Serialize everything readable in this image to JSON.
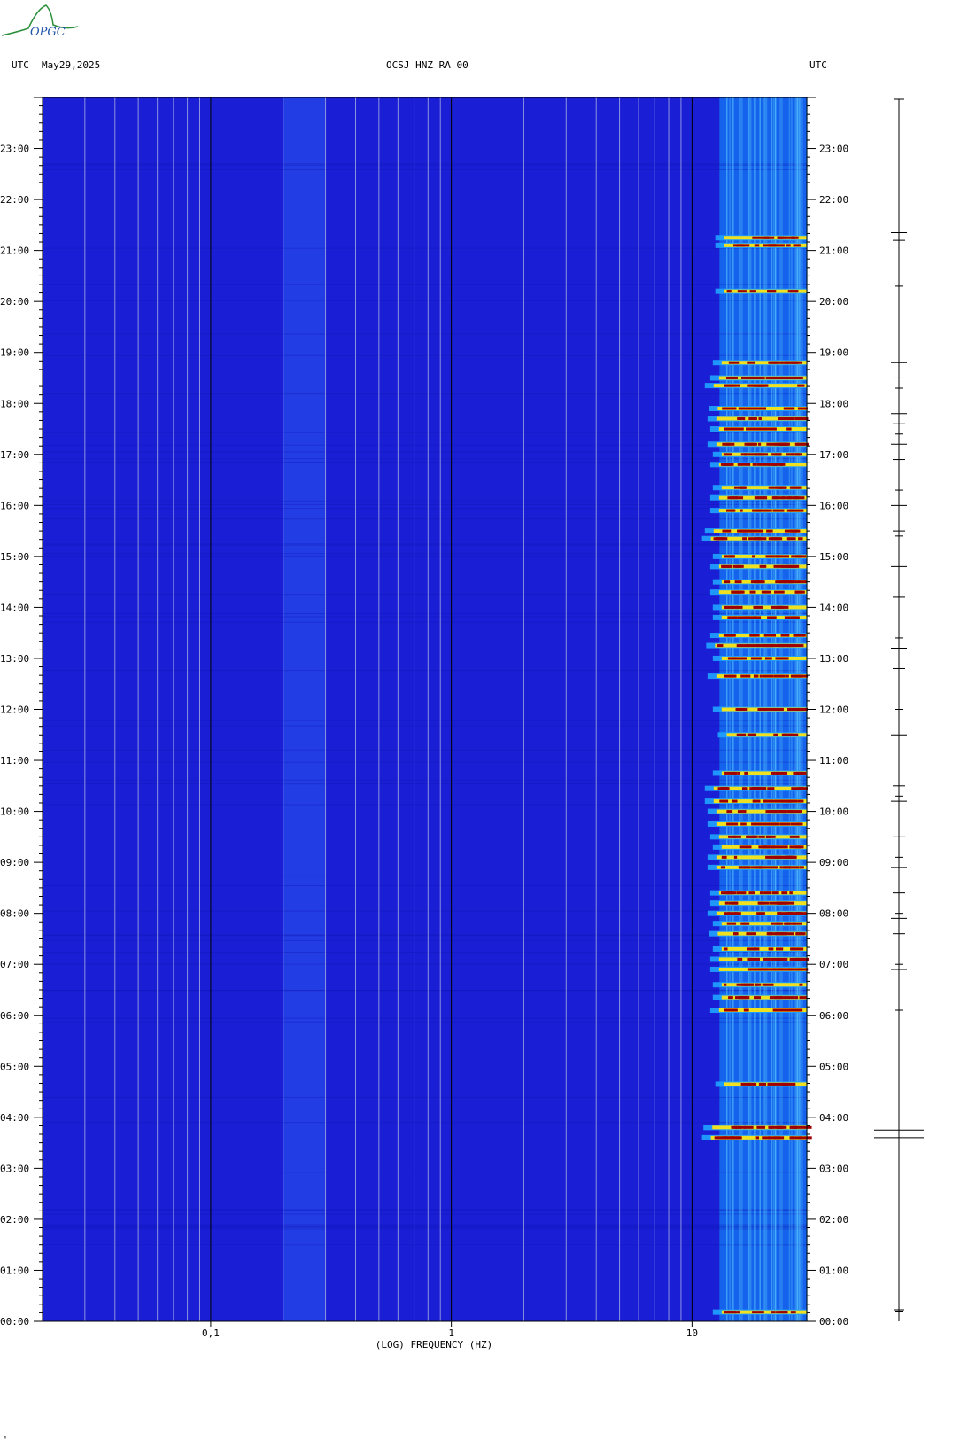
{
  "header": {
    "left_tz": "UTC",
    "date": "May29,2025",
    "station": "OCSJ HNZ RA 00",
    "right_tz": "UTC"
  },
  "logo": {
    "text": "OPGC",
    "color": "#2a8f3a",
    "text_color": "#2255aa"
  },
  "footer": {
    "mark": "ᵐ"
  },
  "chart_data": {
    "type": "heatmap",
    "title": "OCSJ HNZ RA 00",
    "xlabel": "(LOG) FREQUENCY (HZ)",
    "ylabel": "UTC",
    "x_scale": "log",
    "xlim": [
      0.02,
      30
    ],
    "x_ticks": [
      {
        "value": 0.1,
        "label": "0,1"
      },
      {
        "value": 1,
        "label": "1"
      },
      {
        "value": 10,
        "label": "10"
      }
    ],
    "ylim_hours": [
      0,
      24
    ],
    "y_ticks": [
      "00:00",
      "01:00",
      "02:00",
      "03:00",
      "04:00",
      "05:00",
      "06:00",
      "07:00",
      "08:00",
      "09:00",
      "10:00",
      "11:00",
      "12:00",
      "13:00",
      "14:00",
      "15:00",
      "16:00",
      "17:00",
      "18:00",
      "19:00",
      "20:00",
      "21:00",
      "22:00",
      "23:00"
    ],
    "background_color": "#1a1fd6",
    "colors": {
      "low": "#1a1fd6",
      "mid": "#1fa3ff",
      "high": "#f0e020",
      "peak": "#a00000"
    },
    "gridline_freqs": [
      0.03,
      0.04,
      0.05,
      0.06,
      0.07,
      0.08,
      0.09,
      0.2,
      0.3,
      0.4,
      0.5,
      0.6,
      0.7,
      0.8,
      0.9,
      2,
      3,
      4,
      5,
      6,
      7,
      8,
      9
    ],
    "events": [
      {
        "hour": 0.18,
        "strength": 0.6
      },
      {
        "hour": 3.6,
        "strength": 1.0
      },
      {
        "hour": 3.8,
        "strength": 0.95
      },
      {
        "hour": 4.65,
        "strength": 0.5
      },
      {
        "hour": 6.1,
        "strength": 0.7
      },
      {
        "hour": 6.35,
        "strength": 0.6
      },
      {
        "hour": 6.6,
        "strength": 0.6
      },
      {
        "hour": 6.9,
        "strength": 0.7
      },
      {
        "hour": 7.1,
        "strength": 0.7
      },
      {
        "hour": 7.3,
        "strength": 0.6
      },
      {
        "hour": 7.6,
        "strength": 0.75
      },
      {
        "hour": 7.8,
        "strength": 0.6
      },
      {
        "hour": 8.0,
        "strength": 0.8
      },
      {
        "hour": 8.2,
        "strength": 0.7
      },
      {
        "hour": 8.4,
        "strength": 0.7
      },
      {
        "hour": 8.9,
        "strength": 0.8
      },
      {
        "hour": 9.1,
        "strength": 0.8
      },
      {
        "hour": 9.3,
        "strength": 0.6
      },
      {
        "hour": 9.5,
        "strength": 0.7
      },
      {
        "hour": 9.75,
        "strength": 0.8
      },
      {
        "hour": 10.0,
        "strength": 0.8
      },
      {
        "hour": 10.2,
        "strength": 0.9
      },
      {
        "hour": 10.45,
        "strength": 0.9
      },
      {
        "hour": 10.75,
        "strength": 0.6
      },
      {
        "hour": 11.5,
        "strength": 0.4
      },
      {
        "hour": 12.0,
        "strength": 0.6
      },
      {
        "hour": 12.65,
        "strength": 0.8
      },
      {
        "hour": 13.0,
        "strength": 0.6
      },
      {
        "hour": 13.25,
        "strength": 0.85
      },
      {
        "hour": 13.45,
        "strength": 0.7
      },
      {
        "hour": 13.8,
        "strength": 0.6
      },
      {
        "hour": 14.0,
        "strength": 0.6
      },
      {
        "hour": 14.3,
        "strength": 0.7
      },
      {
        "hour": 14.5,
        "strength": 0.6
      },
      {
        "hour": 14.8,
        "strength": 0.7
      },
      {
        "hour": 15.0,
        "strength": 0.6
      },
      {
        "hour": 15.35,
        "strength": 1.0
      },
      {
        "hour": 15.5,
        "strength": 0.9
      },
      {
        "hour": 15.9,
        "strength": 0.7
      },
      {
        "hour": 16.15,
        "strength": 0.7
      },
      {
        "hour": 16.35,
        "strength": 0.6
      },
      {
        "hour": 16.8,
        "strength": 0.7
      },
      {
        "hour": 17.0,
        "strength": 0.6
      },
      {
        "hour": 17.2,
        "strength": 0.8
      },
      {
        "hour": 17.5,
        "strength": 0.7
      },
      {
        "hour": 17.7,
        "strength": 0.8
      },
      {
        "hour": 17.9,
        "strength": 0.75
      },
      {
        "hour": 18.35,
        "strength": 0.9
      },
      {
        "hour": 18.5,
        "strength": 0.7
      },
      {
        "hour": 18.8,
        "strength": 0.6
      },
      {
        "hour": 20.2,
        "strength": 0.5
      },
      {
        "hour": 21.1,
        "strength": 0.5
      },
      {
        "hour": 21.25,
        "strength": 0.5
      }
    ],
    "seismogram_events": [
      0.2,
      3.6,
      3.75,
      6.1,
      6.3,
      6.9,
      7.0,
      7.6,
      7.9,
      8.0,
      8.4,
      8.9,
      9.1,
      9.5,
      10.2,
      10.3,
      10.5,
      11.5,
      12.0,
      12.8,
      13.2,
      13.4,
      14.2,
      14.8,
      15.4,
      15.5,
      16.0,
      16.3,
      16.9,
      17.2,
      17.4,
      17.6,
      17.8,
      18.3,
      18.5,
      18.8,
      20.3,
      21.2,
      21.35
    ]
  }
}
